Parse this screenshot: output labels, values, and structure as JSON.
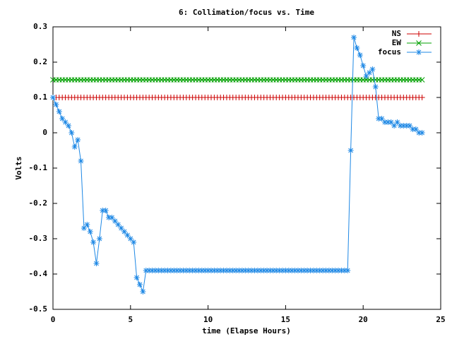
{
  "chart_data": {
    "type": "line",
    "title": "6: Collimation/focus vs. Time",
    "x_label": "time (Elapse Hours)",
    "y_label": "Volts",
    "x": [
      0,
      0.2,
      0.4,
      0.6,
      0.8,
      1,
      1.2,
      1.4,
      1.6,
      1.8,
      2,
      2.2,
      2.4,
      2.6,
      2.8,
      3,
      3.2,
      3.4,
      3.6,
      3.8,
      4,
      4.2,
      4.4,
      4.6,
      4.8,
      5,
      5.2,
      5.4,
      5.6,
      5.8,
      6,
      6.2,
      6.4,
      6.6,
      6.8,
      7,
      7.2,
      7.4,
      7.6,
      7.8,
      8,
      8.2,
      8.4,
      8.6,
      8.8,
      9,
      9.2,
      9.4,
      9.6,
      9.8,
      10,
      10.2,
      10.4,
      10.6,
      10.8,
      11,
      11.2,
      11.4,
      11.6,
      11.8,
      12,
      12.2,
      12.4,
      12.6,
      12.8,
      13,
      13.2,
      13.4,
      13.6,
      13.8,
      14,
      14.2,
      14.4,
      14.6,
      14.8,
      15,
      15.2,
      15.4,
      15.6,
      15.8,
      16,
      16.2,
      16.4,
      16.6,
      16.8,
      17,
      17.2,
      17.4,
      17.6,
      17.8,
      18,
      18.2,
      18.4,
      18.6,
      18.8,
      19,
      19.2,
      19.4,
      19.6,
      19.8,
      20,
      20.2,
      20.4,
      20.6,
      20.8,
      21,
      21.2,
      21.4,
      21.6,
      21.8,
      22,
      22.2,
      22.4,
      22.6,
      22.8,
      23,
      23.2,
      23.4,
      23.6,
      23.8
    ],
    "series": [
      {
        "name": "NS",
        "color": "#cc0000",
        "marker": "plus",
        "values": [
          0.1,
          0.1,
          0.1,
          0.1,
          0.1,
          0.1,
          0.1,
          0.1,
          0.1,
          0.1,
          0.1,
          0.1,
          0.1,
          0.1,
          0.1,
          0.1,
          0.1,
          0.1,
          0.1,
          0.1,
          0.1,
          0.1,
          0.1,
          0.1,
          0.1,
          0.1,
          0.1,
          0.1,
          0.1,
          0.1,
          0.1,
          0.1,
          0.1,
          0.1,
          0.1,
          0.1,
          0.1,
          0.1,
          0.1,
          0.1,
          0.1,
          0.1,
          0.1,
          0.1,
          0.1,
          0.1,
          0.1,
          0.1,
          0.1,
          0.1,
          0.1,
          0.1,
          0.1,
          0.1,
          0.1,
          0.1,
          0.1,
          0.1,
          0.1,
          0.1,
          0.1,
          0.1,
          0.1,
          0.1,
          0.1,
          0.1,
          0.1,
          0.1,
          0.1,
          0.1,
          0.1,
          0.1,
          0.1,
          0.1,
          0.1,
          0.1,
          0.1,
          0.1,
          0.1,
          0.1,
          0.1,
          0.1,
          0.1,
          0.1,
          0.1,
          0.1,
          0.1,
          0.1,
          0.1,
          0.1,
          0.1,
          0.1,
          0.1,
          0.1,
          0.1,
          0.1,
          0.1,
          0.1,
          0.1,
          0.1,
          0.1,
          0.1,
          0.1,
          0.1,
          0.1,
          0.1,
          0.1,
          0.1,
          0.1,
          0.1,
          0.1,
          0.1,
          0.1,
          0.1,
          0.1,
          0.1,
          0.1,
          0.1,
          0.1,
          0.1
        ]
      },
      {
        "name": "EW",
        "color": "#00a000",
        "marker": "cross",
        "values": [
          0.15,
          0.15,
          0.15,
          0.15,
          0.15,
          0.15,
          0.15,
          0.15,
          0.15,
          0.15,
          0.15,
          0.15,
          0.15,
          0.15,
          0.15,
          0.15,
          0.15,
          0.15,
          0.15,
          0.15,
          0.15,
          0.15,
          0.15,
          0.15,
          0.15,
          0.15,
          0.15,
          0.15,
          0.15,
          0.15,
          0.15,
          0.15,
          0.15,
          0.15,
          0.15,
          0.15,
          0.15,
          0.15,
          0.15,
          0.15,
          0.15,
          0.15,
          0.15,
          0.15,
          0.15,
          0.15,
          0.15,
          0.15,
          0.15,
          0.15,
          0.15,
          0.15,
          0.15,
          0.15,
          0.15,
          0.15,
          0.15,
          0.15,
          0.15,
          0.15,
          0.15,
          0.15,
          0.15,
          0.15,
          0.15,
          0.15,
          0.15,
          0.15,
          0.15,
          0.15,
          0.15,
          0.15,
          0.15,
          0.15,
          0.15,
          0.15,
          0.15,
          0.15,
          0.15,
          0.15,
          0.15,
          0.15,
          0.15,
          0.15,
          0.15,
          0.15,
          0.15,
          0.15,
          0.15,
          0.15,
          0.15,
          0.15,
          0.15,
          0.15,
          0.15,
          0.15,
          0.15,
          0.15,
          0.15,
          0.15,
          0.15,
          0.15,
          0.15,
          0.15,
          0.15,
          0.15,
          0.15,
          0.15,
          0.15,
          0.15,
          0.15,
          0.15,
          0.15,
          0.15,
          0.15,
          0.15,
          0.15,
          0.15,
          0.15,
          0.15
        ]
      },
      {
        "name": "focus",
        "color": "#1e88e5",
        "marker": "star",
        "values": [
          0.1,
          0.08,
          0.06,
          0.04,
          0.03,
          0.02,
          0.0,
          -0.04,
          -0.02,
          -0.08,
          -0.27,
          -0.26,
          -0.28,
          -0.31,
          -0.37,
          -0.3,
          -0.22,
          -0.22,
          -0.24,
          -0.24,
          -0.25,
          -0.26,
          -0.27,
          -0.28,
          -0.29,
          -0.3,
          -0.31,
          -0.41,
          -0.43,
          -0.45,
          -0.39,
          -0.39,
          -0.39,
          -0.39,
          -0.39,
          -0.39,
          -0.39,
          -0.39,
          -0.39,
          -0.39,
          -0.39,
          -0.39,
          -0.39,
          -0.39,
          -0.39,
          -0.39,
          -0.39,
          -0.39,
          -0.39,
          -0.39,
          -0.39,
          -0.39,
          -0.39,
          -0.39,
          -0.39,
          -0.39,
          -0.39,
          -0.39,
          -0.39,
          -0.39,
          -0.39,
          -0.39,
          -0.39,
          -0.39,
          -0.39,
          -0.39,
          -0.39,
          -0.39,
          -0.39,
          -0.39,
          -0.39,
          -0.39,
          -0.39,
          -0.39,
          -0.39,
          -0.39,
          -0.39,
          -0.39,
          -0.39,
          -0.39,
          -0.39,
          -0.39,
          -0.39,
          -0.39,
          -0.39,
          -0.39,
          -0.39,
          -0.39,
          -0.39,
          -0.39,
          -0.39,
          -0.39,
          -0.39,
          -0.39,
          -0.39,
          -0.39,
          -0.05,
          0.27,
          0.24,
          0.22,
          0.19,
          0.16,
          0.17,
          0.18,
          0.13,
          0.04,
          0.04,
          0.03,
          0.03,
          0.03,
          0.02,
          0.03,
          0.02,
          0.02,
          0.02,
          0.02,
          0.01,
          0.01,
          0.0,
          0.0
        ]
      }
    ],
    "xlim": [
      0,
      25
    ],
    "xticks": [
      0,
      5,
      10,
      15,
      20,
      25
    ],
    "ylim": [
      -0.5,
      0.3
    ],
    "yticks": [
      -0.5,
      -0.4,
      -0.3,
      -0.2,
      -0.1,
      0,
      0.1,
      0.2,
      0.3
    ],
    "legend": "top-right"
  }
}
